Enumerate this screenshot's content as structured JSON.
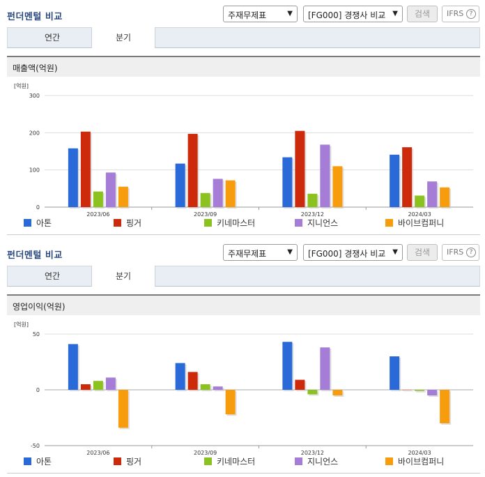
{
  "sections": [
    {
      "title": "펀더멘털 비교",
      "select_type": "주재무제표",
      "select_group": "[FG000] 경쟁사 비교",
      "search_label": "검색",
      "ifrs_label": "IFRS",
      "ifrs_help": "?",
      "tab_year": "연간",
      "tab_quarter": "분기",
      "chart_title": "매출액(억원)"
    },
    {
      "title": "펀더멘털 비교",
      "select_type": "주재무제표",
      "select_group": "[FG000] 경쟁사 비교",
      "search_label": "검색",
      "ifrs_label": "IFRS",
      "ifrs_help": "?",
      "tab_year": "연간",
      "tab_quarter": "분기",
      "chart_title": "영업이익(억원)"
    }
  ],
  "colors": {
    "series": [
      "#2a6ad8",
      "#cc2a0a",
      "#8cc220",
      "#a57cd6",
      "#f79c0d"
    ],
    "title": "#2a4a7f",
    "grid": "#dddddd"
  },
  "chart_data": [
    {
      "type": "bar",
      "title": "매출액(억원)",
      "unit": "[억원]",
      "categories": [
        "2023/06",
        "2023/09",
        "2023/12",
        "2024/03"
      ],
      "ylim": [
        0,
        300
      ],
      "yticks": [
        "0",
        "100",
        "200",
        "300"
      ],
      "grid": true,
      "legend_position": "bottom",
      "series": [
        {
          "name": "아톤",
          "values": [
            158,
            117,
            134,
            141
          ]
        },
        {
          "name": "핑거",
          "values": [
            203,
            197,
            205,
            161
          ]
        },
        {
          "name": "키네마스터",
          "values": [
            42,
            38,
            36,
            31
          ]
        },
        {
          "name": "지니언스",
          "values": [
            93,
            76,
            168,
            69
          ]
        },
        {
          "name": "바이브컴퍼니",
          "values": [
            55,
            72,
            110,
            53
          ]
        }
      ]
    },
    {
      "type": "bar",
      "title": "영업이익(억원)",
      "unit": "[억원]",
      "categories": [
        "2023/06",
        "2023/09",
        "2023/12",
        "2024/03"
      ],
      "ylim": [
        -50,
        50
      ],
      "yticks": [
        "-50",
        "0",
        "50"
      ],
      "grid": true,
      "legend_position": "bottom",
      "series": [
        {
          "name": "아톤",
          "values": [
            41,
            24,
            43,
            30
          ]
        },
        {
          "name": "핑거",
          "values": [
            5,
            16,
            9,
            0
          ]
        },
        {
          "name": "키네마스터",
          "values": [
            8,
            5,
            -4,
            -1
          ]
        },
        {
          "name": "지니언스",
          "values": [
            11,
            3,
            38,
            -5
          ]
        },
        {
          "name": "바이브컴퍼니",
          "values": [
            -34,
            -22,
            -5,
            -30
          ]
        }
      ]
    }
  ]
}
